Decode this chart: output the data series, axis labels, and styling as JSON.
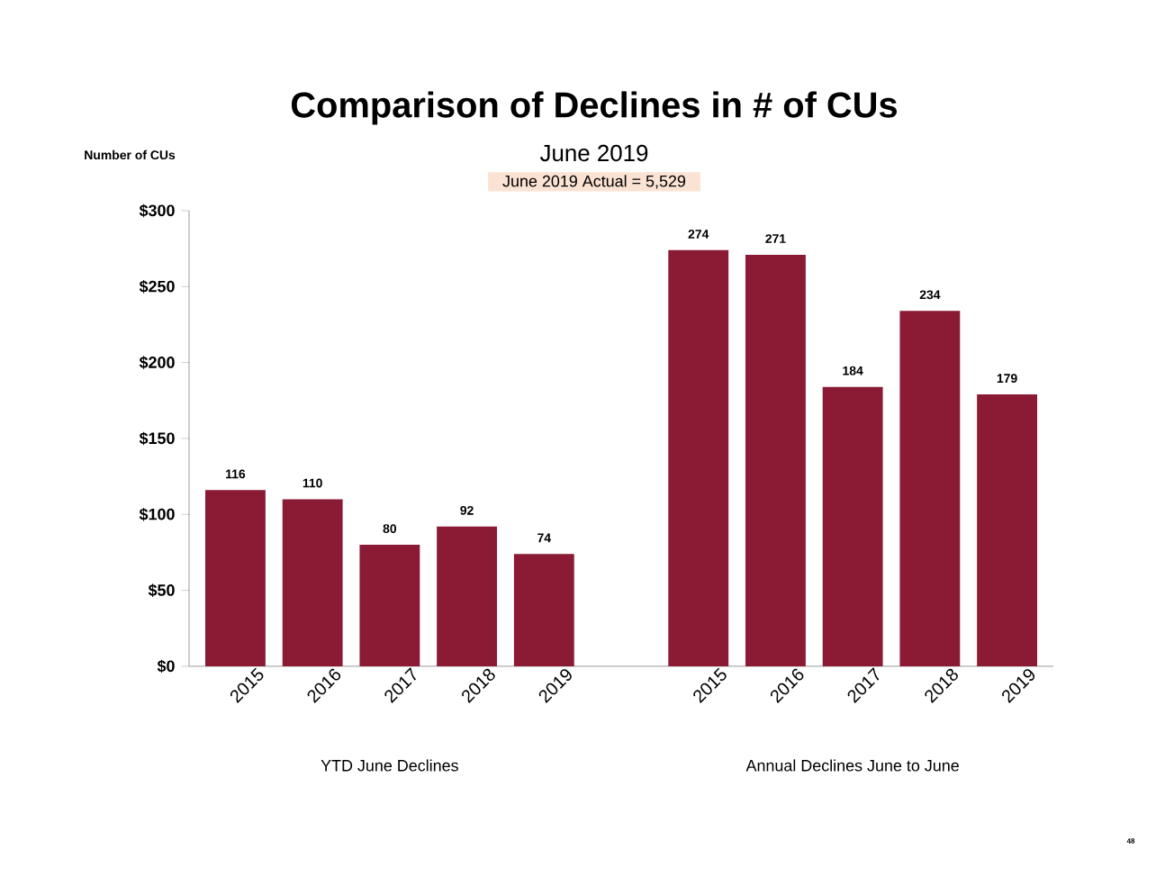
{
  "chart_data": {
    "type": "bar",
    "title": "Comparison of Declines in # of CUs",
    "subtitle": "June 2019",
    "ylabel": "Number of CUs",
    "categories": [
      "2015",
      "2016",
      "2017",
      "2018",
      "2019",
      null,
      "2015",
      "2016",
      "2017",
      "2018",
      "2019"
    ],
    "values": [
      116,
      110,
      80,
      92,
      74,
      null,
      274,
      271,
      184,
      234,
      179
    ],
    "color": "#8b1a35",
    "ylim": [
      0,
      300
    ],
    "yticks": [
      {
        "value": 0,
        "label": "$0"
      },
      {
        "value": 50,
        "label": "$50"
      },
      {
        "value": 100,
        "label": "$100"
      },
      {
        "value": 150,
        "label": "$150"
      },
      {
        "value": 200,
        "label": "$200"
      },
      {
        "value": 250,
        "label": "$250"
      },
      {
        "value": 300,
        "label": "$300"
      }
    ],
    "data_labels": true,
    "annotations": [
      "June 2019 Actual = 5,529",
      "YTD June Declines",
      "Annual Declines June to June",
      "48"
    ]
  }
}
